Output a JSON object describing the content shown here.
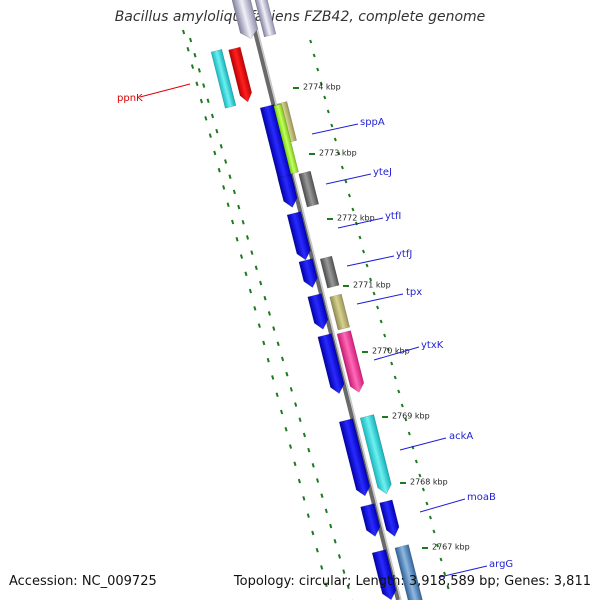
{
  "title": "Bacillus amyloliquefaciens FZB42, complete genome",
  "accession_label": "Accession: NC_009725",
  "summary_label": "Topology: circular; Length: 3,918,589 bp; Genes: 3,811",
  "colors": {
    "forward_cds": "#0a0adf",
    "backbone": "#8a8a8a",
    "ticks": "#1f7a1f",
    "gene_label": "#1f1fd6",
    "highlight_label": "#dd0000"
  },
  "kbp_ticks": [
    "2774 kbp",
    "2773 kbp",
    "2772 kbp",
    "2771 kbp",
    "2770 kbp",
    "2769 kbp",
    "2768 kbp",
    "2767 kbp"
  ],
  "genes": [
    {
      "name": "ppnK",
      "color": "#dd0000",
      "label_color": "#dd0000",
      "side": "left"
    },
    {
      "name": "sppA",
      "color": "#b7b070",
      "label_color": "#1f1fd6",
      "side": "right"
    },
    {
      "name": "yteJ",
      "color": "#666666",
      "label_color": "#1f1fd6",
      "side": "right"
    },
    {
      "name": "ytfI",
      "color": "#0a0adf",
      "label_color": "#1f1fd6",
      "side": "right"
    },
    {
      "name": "ytfJ",
      "color": "#666666",
      "label_color": "#1f1fd6",
      "side": "right"
    },
    {
      "name": "tpx",
      "color": "#b7b070",
      "label_color": "#1f1fd6",
      "side": "right"
    },
    {
      "name": "ytxK",
      "color": "#ee2d8c",
      "label_color": "#1f1fd6",
      "side": "right"
    },
    {
      "name": "ackA",
      "color": "#19e0e0",
      "label_color": "#1f1fd6",
      "side": "right"
    },
    {
      "name": "moaB",
      "color": "#0a0adf",
      "label_color": "#1f1fd6",
      "side": "right"
    },
    {
      "name": "argG",
      "color": "#4a7fb5",
      "label_color": "#1f1fd6",
      "side": "right"
    }
  ]
}
